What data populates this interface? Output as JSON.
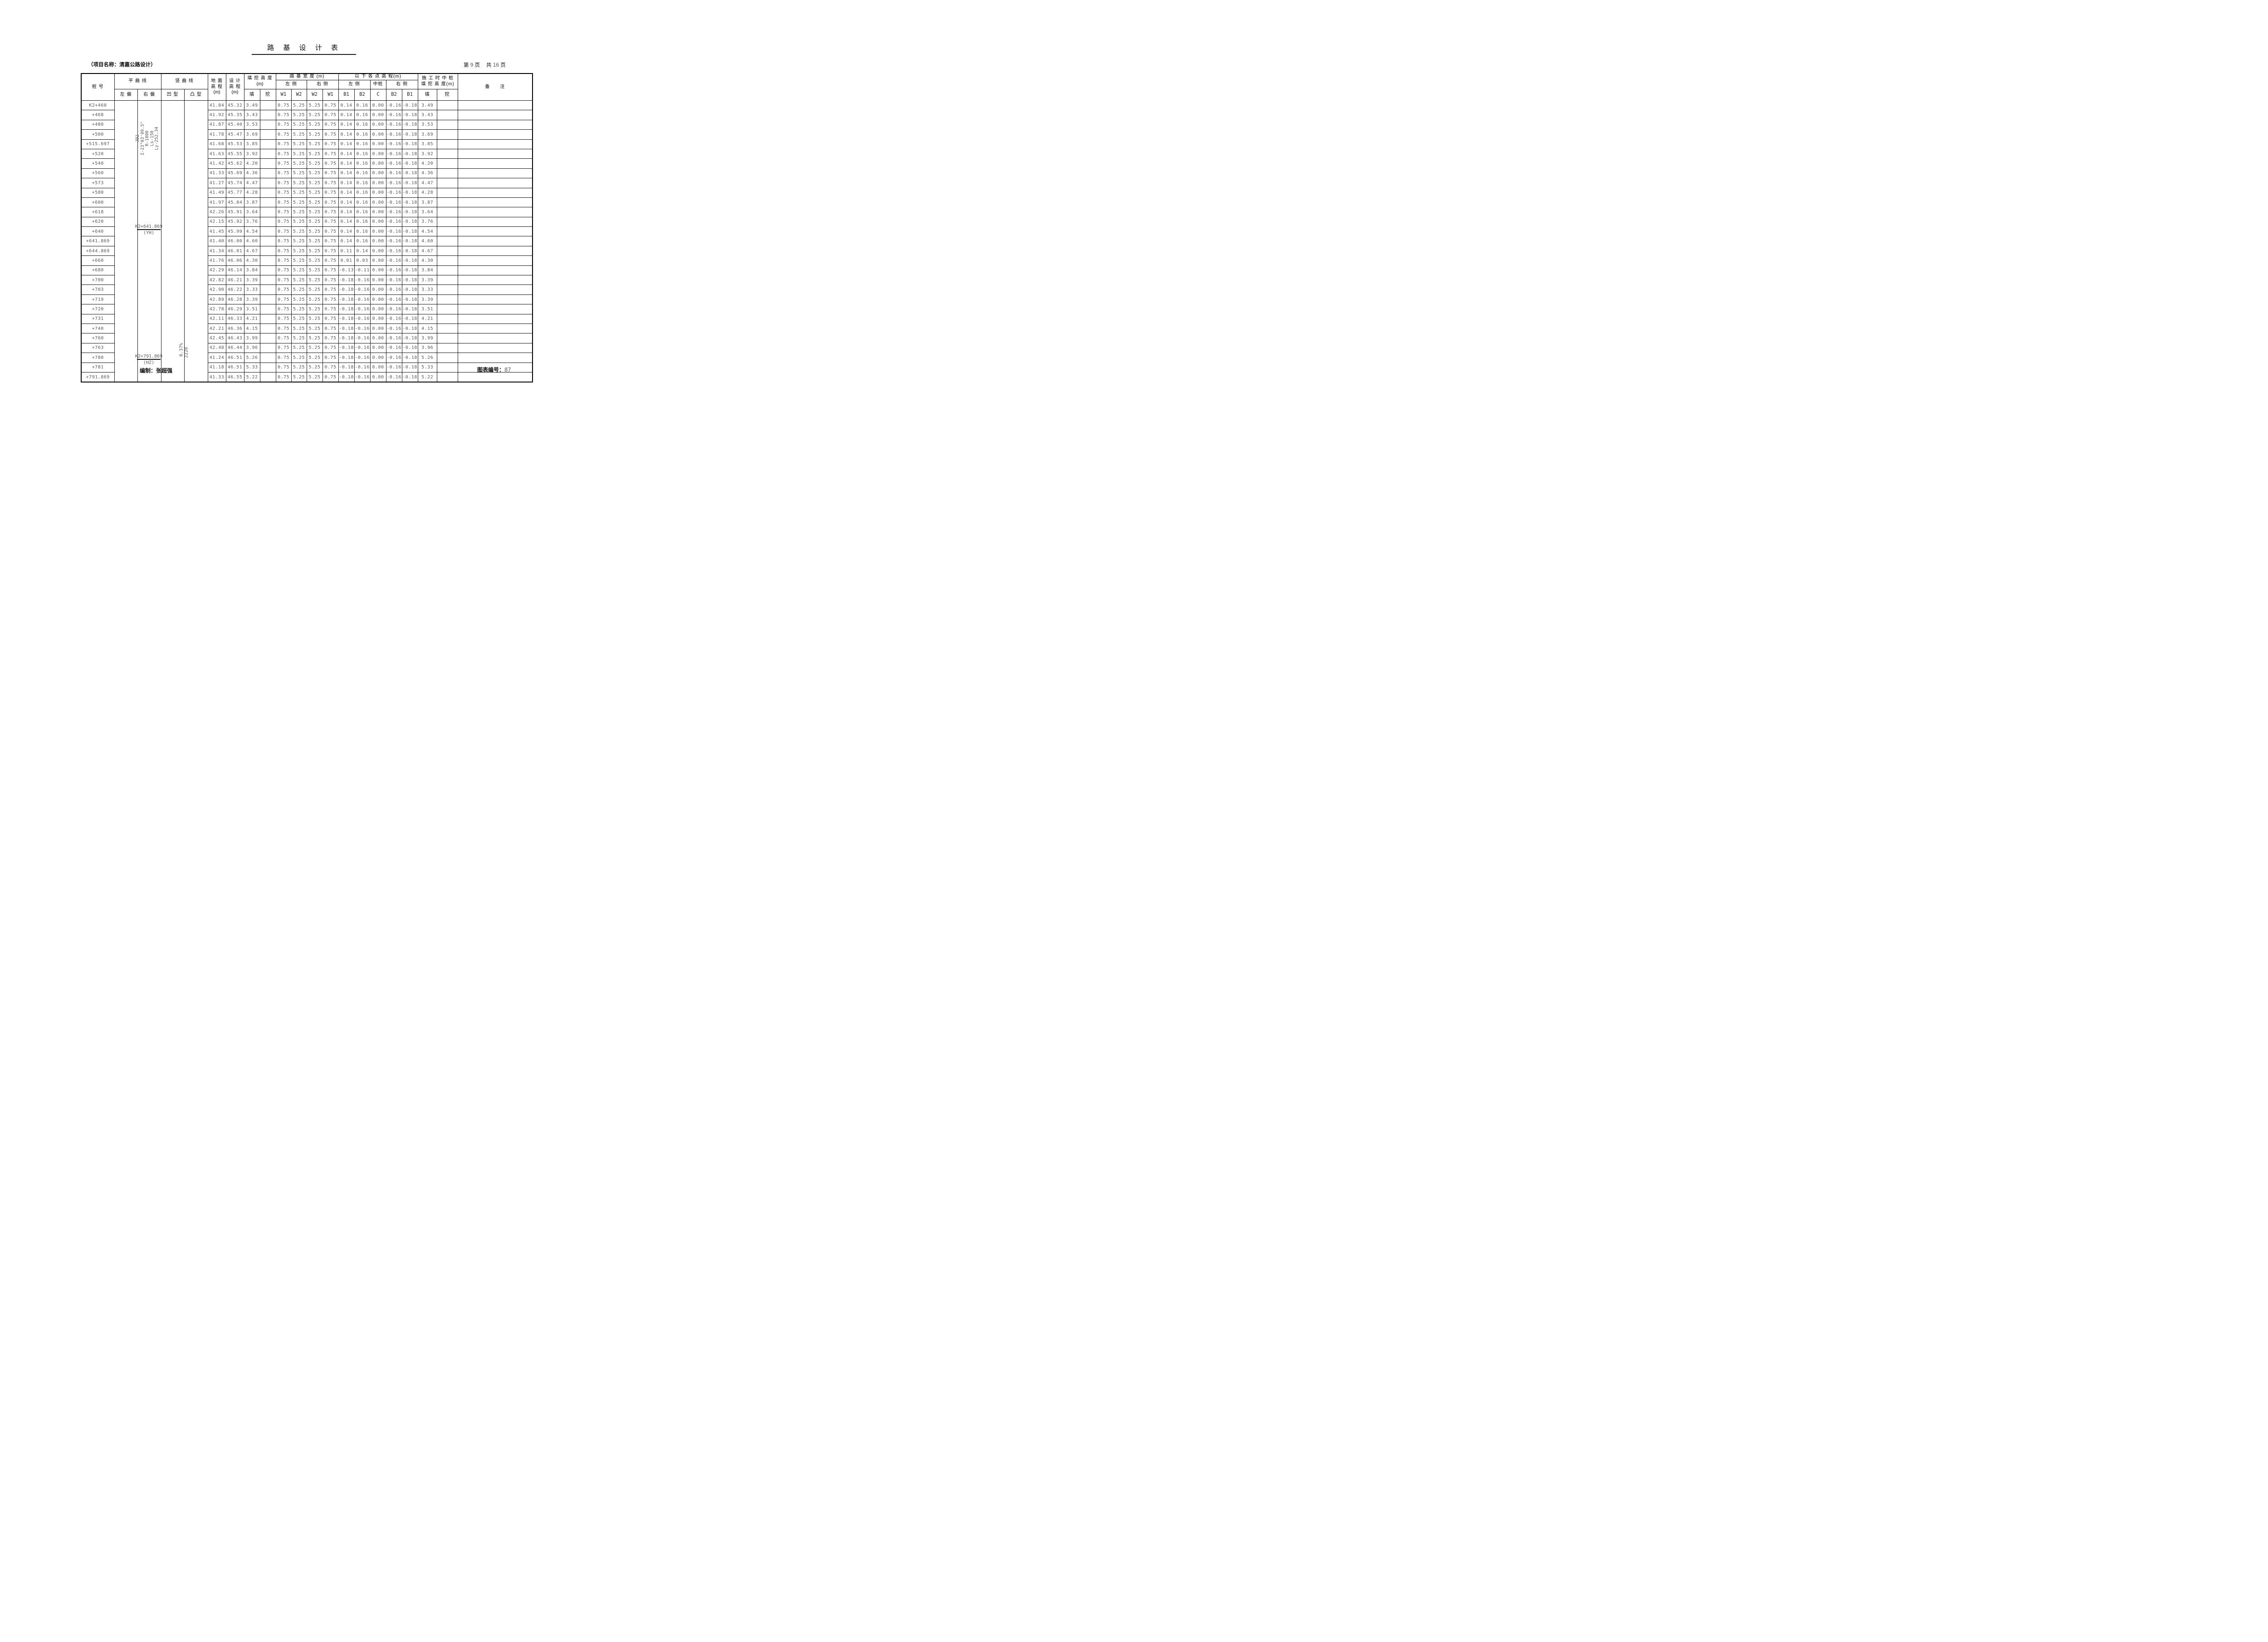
{
  "title": "路 基 设 计 表",
  "project_name": "（项目名称：清嘉公路设计）",
  "pagination": {
    "p_label": "第",
    "page": "9",
    "p_unit": "页",
    "t_label": "共",
    "total": "16",
    "t_unit": "页"
  },
  "colors": {
    "ink": "#111111",
    "muted": "#5a5a5a"
  },
  "headers": {
    "stake": "桩  号",
    "horiz_curve": "平 曲 线",
    "left_dev": "左 偏",
    "right_dev": "右 偏",
    "vert_curve": "竖 曲 线",
    "concave": "凹 型",
    "convex": "凸 型",
    "ground_l1": "地 面",
    "ground_l2": "高 程",
    "design_l1": "设 计",
    "design_l2": "高 程",
    "unit_m": "(m)",
    "cutfill_l1": "填 挖 高 度",
    "fill": "填",
    "cut": "挖",
    "roadbed_width": "路 基 宽 度 (m)",
    "left_side": "左 侧",
    "right_side": "右 侧",
    "w1": "W1",
    "w2": "W2",
    "point_elev": "以 下 各 点 高 程(m)",
    "mid_stake": "中桩",
    "b1": "B1",
    "b2": "B2",
    "c": "C",
    "con_l1": "施 工 时 中 桩",
    "con_l2": "填 挖 高 度(m)",
    "remarks": "备　　注"
  },
  "notes": {
    "curve": [
      "JD2",
      "I-23°03'09.5\"",
      "R-1000",
      "Ls-150",
      "Ly-252.34"
    ],
    "yh_station": "K2+641.869",
    "yh_label": "(YH)",
    "hz_station": "K2+791.869",
    "hz_label": "(HZ)",
    "slope": "0.37%",
    "vcurve_radius": "2220"
  },
  "rows": [
    {
      "stake": "K2+460",
      "ground": "41.84",
      "design": "45.32",
      "fill": "3.49",
      "w1_left": "0.75",
      "w2_left": "5.25",
      "w2_right": "5.25",
      "w1_right": "0.75",
      "b1_left": "0.14",
      "b2_left": "0.16",
      "c": "0.00",
      "b2_right": "-0.16",
      "b1_right": "-0.18",
      "con_fill": "3.49"
    },
    {
      "stake": "+468",
      "ground": "41.92",
      "design": "45.35",
      "fill": "3.43",
      "w1_left": "0.75",
      "w2_left": "5.25",
      "w2_right": "5.25",
      "w1_right": "0.75",
      "b1_left": "0.14",
      "b2_left": "0.16",
      "c": "0.00",
      "b2_right": "-0.16",
      "b1_right": "-0.18",
      "con_fill": "3.43"
    },
    {
      "stake": "+480",
      "ground": "41.87",
      "design": "45.40",
      "fill": "3.53",
      "w1_left": "0.75",
      "w2_left": "5.25",
      "w2_right": "5.25",
      "w1_right": "0.75",
      "b1_left": "0.14",
      "b2_left": "0.16",
      "c": "0.00",
      "b2_right": "-0.16",
      "b1_right": "-0.18",
      "con_fill": "3.53"
    },
    {
      "stake": "+500",
      "ground": "41.78",
      "design": "45.47",
      "fill": "3.69",
      "w1_left": "0.75",
      "w2_left": "5.25",
      "w2_right": "5.25",
      "w1_right": "0.75",
      "b1_left": "0.14",
      "b2_left": "0.16",
      "c": "0.00",
      "b2_right": "-0.16",
      "b1_right": "-0.18",
      "con_fill": "3.69"
    },
    {
      "stake": "+515.697",
      "ground": "41.68",
      "design": "45.53",
      "fill": "3.85",
      "w1_left": "0.75",
      "w2_left": "5.25",
      "w2_right": "5.25",
      "w1_right": "0.75",
      "b1_left": "0.14",
      "b2_left": "0.16",
      "c": "0.00",
      "b2_right": "-0.16",
      "b1_right": "-0.18",
      "con_fill": "3.85"
    },
    {
      "stake": "+520",
      "ground": "41.63",
      "design": "45.55",
      "fill": "3.92",
      "w1_left": "0.75",
      "w2_left": "5.25",
      "w2_right": "5.25",
      "w1_right": "0.75",
      "b1_left": "0.14",
      "b2_left": "0.16",
      "c": "0.00",
      "b2_right": "-0.16",
      "b1_right": "-0.18",
      "con_fill": "3.92"
    },
    {
      "stake": "+540",
      "ground": "41.42",
      "design": "45.62",
      "fill": "4.20",
      "w1_left": "0.75",
      "w2_left": "5.25",
      "w2_right": "5.25",
      "w1_right": "0.75",
      "b1_left": "0.14",
      "b2_left": "0.16",
      "c": "0.00",
      "b2_right": "-0.16",
      "b1_right": "-0.18",
      "con_fill": "4.20"
    },
    {
      "stake": "+560",
      "ground": "41.33",
      "design": "45.69",
      "fill": "4.36",
      "w1_left": "0.75",
      "w2_left": "5.25",
      "w2_right": "5.25",
      "w1_right": "0.75",
      "b1_left": "0.14",
      "b2_left": "0.16",
      "c": "0.00",
      "b2_right": "-0.16",
      "b1_right": "-0.18",
      "con_fill": "4.36"
    },
    {
      "stake": "+573",
      "ground": "41.27",
      "design": "45.74",
      "fill": "4.47",
      "w1_left": "0.75",
      "w2_left": "5.25",
      "w2_right": "5.25",
      "w1_right": "0.75",
      "b1_left": "0.14",
      "b2_left": "0.16",
      "c": "0.00",
      "b2_right": "-0.16",
      "b1_right": "-0.18",
      "con_fill": "4.47"
    },
    {
      "stake": "+580",
      "ground": "41.49",
      "design": "45.77",
      "fill": "4.28",
      "w1_left": "0.75",
      "w2_left": "5.25",
      "w2_right": "5.25",
      "w1_right": "0.75",
      "b1_left": "0.14",
      "b2_left": "0.16",
      "c": "0.00",
      "b2_right": "-0.16",
      "b1_right": "-0.18",
      "con_fill": "4.28"
    },
    {
      "stake": "+600",
      "ground": "41.97",
      "design": "45.84",
      "fill": "3.87",
      "w1_left": "0.75",
      "w2_left": "5.25",
      "w2_right": "5.25",
      "w1_right": "0.75",
      "b1_left": "0.14",
      "b2_left": "0.16",
      "c": "0.00",
      "b2_right": "-0.16",
      "b1_right": "-0.18",
      "con_fill": "3.87"
    },
    {
      "stake": "+618",
      "ground": "42.26",
      "design": "45.91",
      "fill": "3.64",
      "w1_left": "0.75",
      "w2_left": "5.25",
      "w2_right": "5.25",
      "w1_right": "0.75",
      "b1_left": "0.14",
      "b2_left": "0.16",
      "c": "0.00",
      "b2_right": "-0.16",
      "b1_right": "-0.18",
      "con_fill": "3.64"
    },
    {
      "stake": "+620",
      "ground": "42.15",
      "design": "45.92",
      "fill": "3.76",
      "w1_left": "0.75",
      "w2_left": "5.25",
      "w2_right": "5.25",
      "w1_right": "0.75",
      "b1_left": "0.14",
      "b2_left": "0.16",
      "c": "0.00",
      "b2_right": "-0.16",
      "b1_right": "-0.18",
      "con_fill": "3.76"
    },
    {
      "stake": "+640",
      "ground": "41.45",
      "design": "45.99",
      "fill": "4.54",
      "w1_left": "0.75",
      "w2_left": "5.25",
      "w2_right": "5.25",
      "w1_right": "0.75",
      "b1_left": "0.14",
      "b2_left": "0.16",
      "c": "0.00",
      "b2_right": "-0.16",
      "b1_right": "-0.18",
      "con_fill": "4.54"
    },
    {
      "stake": "+641.869",
      "ground": "41.40",
      "design": "46.00",
      "fill": "4.60",
      "w1_left": "0.75",
      "w2_left": "5.25",
      "w2_right": "5.25",
      "w1_right": "0.75",
      "b1_left": "0.14",
      "b2_left": "0.16",
      "c": "0.00",
      "b2_right": "-0.16",
      "b1_right": "-0.18",
      "con_fill": "4.60"
    },
    {
      "stake": "+644.869",
      "ground": "41.34",
      "design": "46.01",
      "fill": "4.67",
      "w1_left": "0.75",
      "w2_left": "5.25",
      "w2_right": "5.25",
      "w1_right": "0.75",
      "b1_left": "0.11",
      "b2_left": "0.14",
      "c": "0.00",
      "b2_right": "-0.16",
      "b1_right": "-0.18",
      "con_fill": "4.67"
    },
    {
      "stake": "+660",
      "ground": "41.76",
      "design": "46.06",
      "fill": "4.30",
      "w1_left": "0.75",
      "w2_left": "5.25",
      "w2_right": "5.25",
      "w1_right": "0.75",
      "b1_left": "0.01",
      "b2_left": "0.03",
      "c": "0.00",
      "b2_right": "-0.16",
      "b1_right": "-0.18",
      "con_fill": "4.30"
    },
    {
      "stake": "+680",
      "ground": "42.29",
      "design": "46.14",
      "fill": "3.84",
      "w1_left": "0.75",
      "w2_left": "5.25",
      "w2_right": "5.25",
      "w1_right": "0.75",
      "b1_left": "-0.13",
      "b2_left": "-0.11",
      "c": "0.00",
      "b2_right": "-0.16",
      "b1_right": "-0.18",
      "con_fill": "3.84"
    },
    {
      "stake": "+700",
      "ground": "42.82",
      "design": "46.21",
      "fill": "3.39",
      "w1_left": "0.75",
      "w2_left": "5.25",
      "w2_right": "5.25",
      "w1_right": "0.75",
      "b1_left": "-0.18",
      "b2_left": "-0.16",
      "c": "0.00",
      "b2_right": "-0.16",
      "b1_right": "-0.18",
      "con_fill": "3.39"
    },
    {
      "stake": "+703",
      "ground": "42.90",
      "design": "46.22",
      "fill": "3.33",
      "w1_left": "0.75",
      "w2_left": "5.25",
      "w2_right": "5.25",
      "w1_right": "0.75",
      "b1_left": "-0.18",
      "b2_left": "-0.16",
      "c": "0.00",
      "b2_right": "-0.16",
      "b1_right": "-0.18",
      "con_fill": "3.33"
    },
    {
      "stake": "+719",
      "ground": "42.89",
      "design": "46.28",
      "fill": "3.39",
      "w1_left": "0.75",
      "w2_left": "5.25",
      "w2_right": "5.25",
      "w1_right": "0.75",
      "b1_left": "-0.18",
      "b2_left": "-0.16",
      "c": "0.00",
      "b2_right": "-0.16",
      "b1_right": "-0.18",
      "con_fill": "3.39"
    },
    {
      "stake": "+720",
      "ground": "42.78",
      "design": "46.29",
      "fill": "3.51",
      "w1_left": "0.75",
      "w2_left": "5.25",
      "w2_right": "5.25",
      "w1_right": "0.75",
      "b1_left": "-0.18",
      "b2_left": "-0.16",
      "c": "0.00",
      "b2_right": "-0.16",
      "b1_right": "-0.18",
      "con_fill": "3.51"
    },
    {
      "stake": "+731",
      "ground": "42.11",
      "design": "46.33",
      "fill": "4.21",
      "w1_left": "0.75",
      "w2_left": "5.25",
      "w2_right": "5.25",
      "w1_right": "0.75",
      "b1_left": "-0.18",
      "b2_left": "-0.16",
      "c": "0.00",
      "b2_right": "-0.16",
      "b1_right": "-0.18",
      "con_fill": "4.21"
    },
    {
      "stake": "+740",
      "ground": "42.21",
      "design": "46.36",
      "fill": "4.15",
      "w1_left": "0.75",
      "w2_left": "5.25",
      "w2_right": "5.25",
      "w1_right": "0.75",
      "b1_left": "-0.18",
      "b2_left": "-0.16",
      "c": "0.00",
      "b2_right": "-0.16",
      "b1_right": "-0.18",
      "con_fill": "4.15"
    },
    {
      "stake": "+760",
      "ground": "42.45",
      "design": "46.43",
      "fill": "3.99",
      "w1_left": "0.75",
      "w2_left": "5.25",
      "w2_right": "5.25",
      "w1_right": "0.75",
      "b1_left": "-0.18",
      "b2_left": "-0.16",
      "c": "0.00",
      "b2_right": "-0.16",
      "b1_right": "-0.18",
      "con_fill": "3.99"
    },
    {
      "stake": "+763",
      "ground": "42.48",
      "design": "46.44",
      "fill": "3.96",
      "w1_left": "0.75",
      "w2_left": "5.25",
      "w2_right": "5.25",
      "w1_right": "0.75",
      "b1_left": "-0.18",
      "b2_left": "-0.16",
      "c": "0.00",
      "b2_right": "-0.16",
      "b1_right": "-0.18",
      "con_fill": "3.96"
    },
    {
      "stake": "+780",
      "ground": "41.24",
      "design": "46.51",
      "fill": "5.26",
      "w1_left": "0.75",
      "w2_left": "5.25",
      "w2_right": "5.25",
      "w1_right": "0.75",
      "b1_left": "-0.18",
      "b2_left": "-0.16",
      "c": "0.00",
      "b2_right": "-0.16",
      "b1_right": "-0.18",
      "con_fill": "5.26"
    },
    {
      "stake": "+781",
      "ground": "41.18",
      "design": "46.51",
      "fill": "5.33",
      "w1_left": "0.75",
      "w2_left": "5.25",
      "w2_right": "5.25",
      "w1_right": "0.75",
      "b1_left": "-0.18",
      "b2_left": "-0.16",
      "c": "0.00",
      "b2_right": "-0.16",
      "b1_right": "-0.18",
      "con_fill": "5.33"
    },
    {
      "stake": "+791.869",
      "ground": "41.33",
      "design": "46.55",
      "fill": "5.22",
      "w1_left": "0.75",
      "w2_left": "5.25",
      "w2_right": "5.25",
      "w1_right": "0.75",
      "b1_left": "-0.18",
      "b2_left": "-0.16",
      "c": "0.00",
      "b2_right": "-0.16",
      "b1_right": "-0.18",
      "con_fill": "5.22"
    }
  ],
  "footer": {
    "maker": "编制：张超强",
    "chart_no_label": "图表编号：",
    "chart_no": "87"
  }
}
